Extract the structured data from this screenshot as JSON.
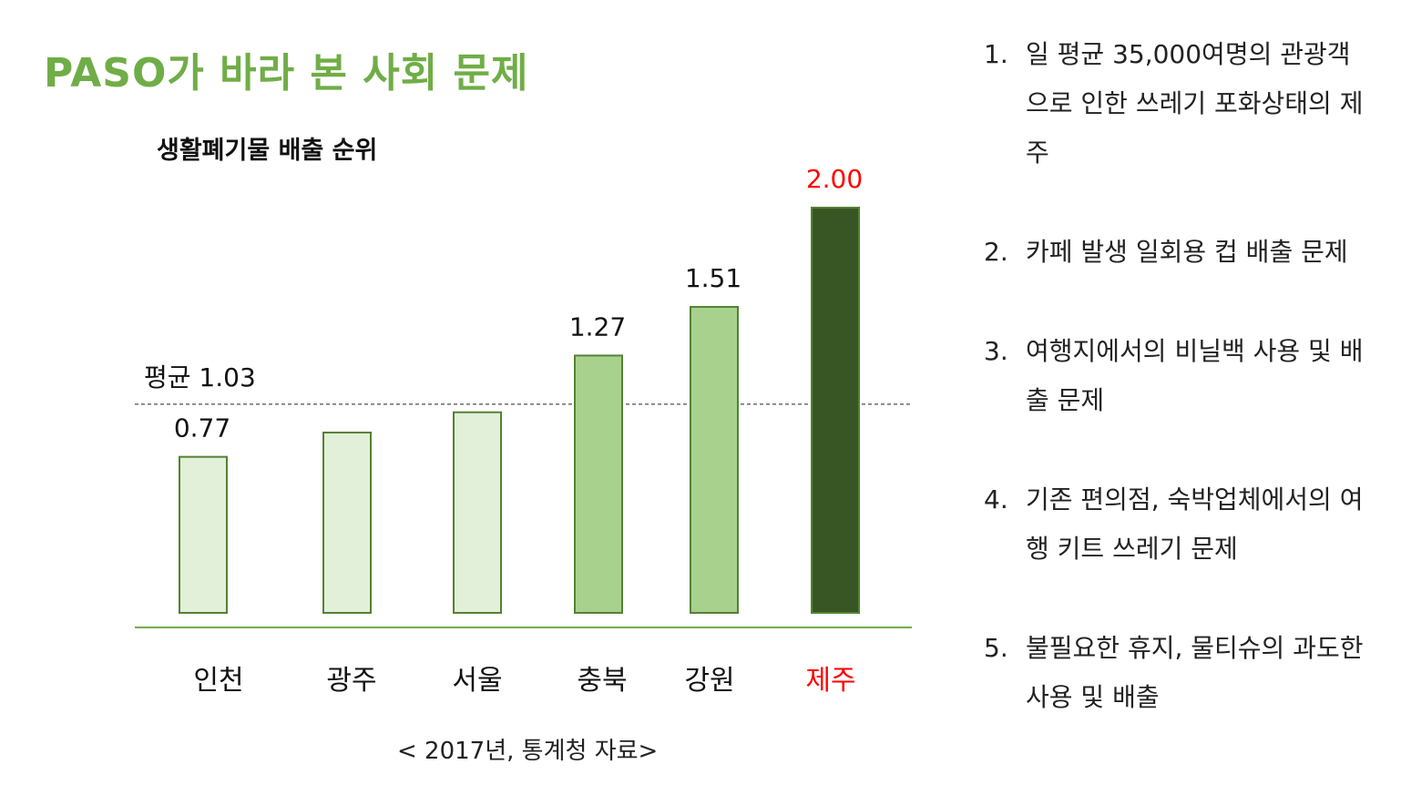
{
  "title": "PASO가 바라 본 사회 문제",
  "chart_title": "생활폐기물 배출 순위",
  "source": "< 2017년, 통계청 자료>",
  "colors": {
    "title": "#70ad47",
    "bar_light": "#e2efd9",
    "bar_mid": "#a9d18e",
    "bar_dark": "#375623",
    "bar_border": "#548235",
    "highlight": "#ff0000",
    "axis": "#70ad47"
  },
  "chart_data": {
    "type": "bar",
    "title": "생활폐기물 배출 순위",
    "categories": [
      "인천",
      "광주",
      "서울",
      "충북",
      "강원",
      "제주"
    ],
    "values": [
      0.77,
      0.89,
      0.99,
      1.27,
      1.51,
      2.0
    ],
    "data_labels": [
      "0.77",
      "",
      "",
      "1.27",
      "1.51",
      "2.00"
    ],
    "bar_tones": [
      "light",
      "light",
      "light",
      "mid",
      "mid",
      "dark"
    ],
    "highlight_category": "제주",
    "average": 1.03,
    "average_label": "평균 1.03",
    "ylim": [
      0,
      2.05
    ],
    "xlabel": "",
    "ylabel": "",
    "grid": false,
    "legend": "none"
  },
  "issues": [
    {
      "num": "1.",
      "text": "일 평균 35,000여명의 관광객으로 인한 쓰레기 포화상태의 제주"
    },
    {
      "num": "2.",
      "text": "카페 발생 일회용 컵 배출 문제"
    },
    {
      "num": "3.",
      "text": "여행지에서의 비닐백 사용 및 배출 문제"
    },
    {
      "num": "4.",
      "text": "기존 편의점, 숙박업체에서의 여행 키트 쓰레기 문제"
    },
    {
      "num": "5.",
      "text": "불필요한 휴지, 물티슈의 과도한 사용 및 배출"
    }
  ]
}
